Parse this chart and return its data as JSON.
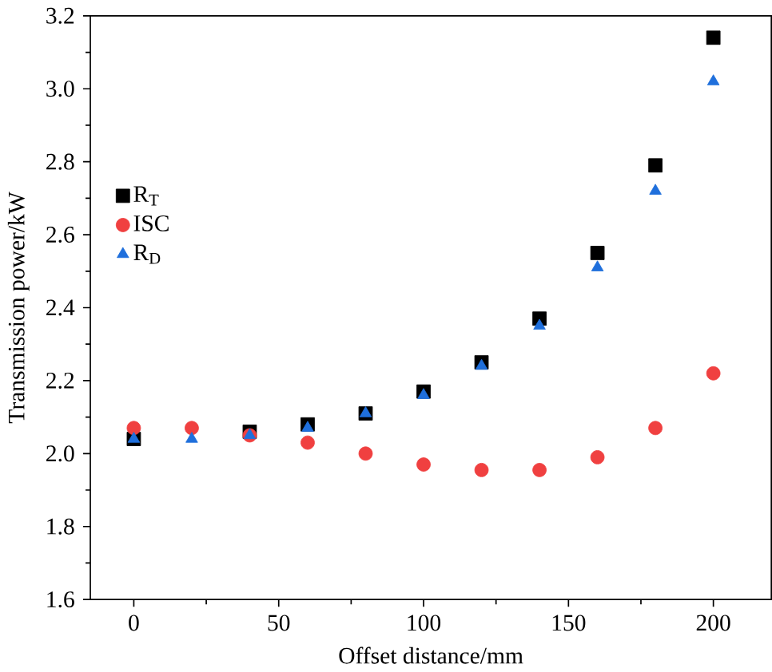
{
  "chart_data": {
    "type": "scatter",
    "xlabel": "Offset distance/mm",
    "ylabel": "Transmission power/kW",
    "x": [
      0,
      20,
      40,
      60,
      80,
      100,
      120,
      140,
      160,
      180,
      200
    ],
    "series": [
      {
        "name": "R$_{T}$",
        "color": "#000000",
        "marker": "square",
        "values": [
          2.04,
          null,
          2.06,
          2.08,
          2.11,
          2.17,
          2.25,
          2.37,
          2.55,
          2.79,
          3.14
        ]
      },
      {
        "name": "ISC",
        "color": "#f04040",
        "marker": "circle",
        "values": [
          2.07,
          2.07,
          2.05,
          2.03,
          2.0,
          1.97,
          1.955,
          1.955,
          1.99,
          2.07,
          2.22
        ]
      },
      {
        "name": "R$_{D}$",
        "color": "#1f6fdc",
        "marker": "triangle",
        "values": [
          2.04,
          2.04,
          2.05,
          2.07,
          2.11,
          2.16,
          2.24,
          2.35,
          2.51,
          2.72,
          3.02
        ]
      }
    ],
    "xlim": [
      -15,
      220
    ],
    "ylim": [
      1.6,
      3.2
    ],
    "xticks": [
      0,
      50,
      100,
      150,
      200
    ],
    "yticks": [
      1.6,
      1.8,
      {
        "value": 2,
        "label": "2.0"
      },
      2.2,
      2.4,
      2.6,
      2.8,
      {
        "value": 3,
        "label": "3.0"
      },
      3.2
    ],
    "legend": "top left"
  }
}
